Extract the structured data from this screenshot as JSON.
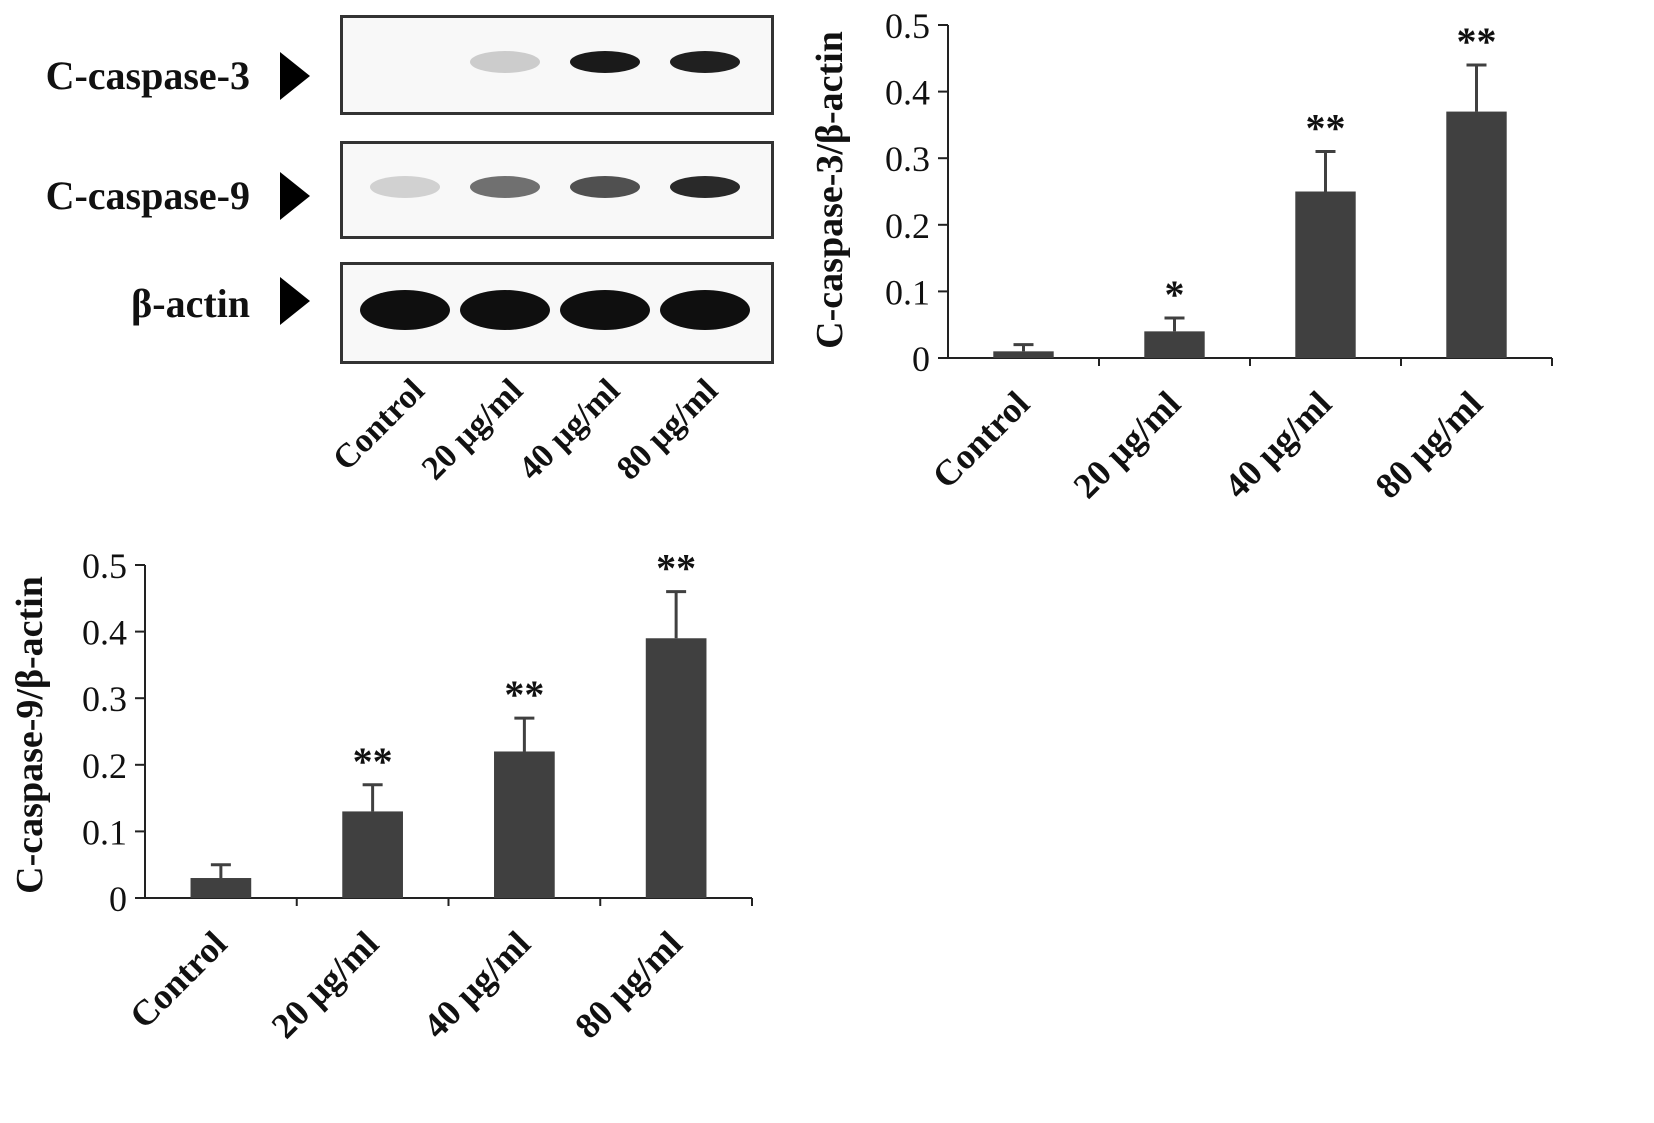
{
  "blot": {
    "rows": [
      {
        "label": "C-caspase-3",
        "intensities": [
          0.0,
          0.12,
          0.95,
          0.92
        ]
      },
      {
        "label": "C-caspase-9",
        "intensities": [
          0.1,
          0.55,
          0.7,
          0.88
        ]
      },
      {
        "label": "β-actin",
        "intensities": [
          1.0,
          1.0,
          1.0,
          1.0
        ]
      }
    ],
    "lanes": [
      "Control",
      "20 μg/ml",
      "40 μg/ml",
      "80 μg/ml"
    ]
  },
  "chart_data": [
    {
      "type": "bar",
      "categories": [
        "Control",
        "20 μg/ml",
        "40 μg/ml",
        "80 μg/ml"
      ],
      "values": [
        0.01,
        0.04,
        0.25,
        0.37
      ],
      "errors": [
        0.01,
        0.02,
        0.06,
        0.07
      ],
      "significance": [
        "",
        "*",
        "**",
        "**"
      ],
      "ylabel": "C-caspase-3/β-actin",
      "ylim": [
        0,
        0.5
      ],
      "yticks": [
        "0",
        "0.1",
        "0.2",
        "0.3",
        "0.4",
        "0.5"
      ],
      "bar_color": "#404040"
    },
    {
      "type": "bar",
      "categories": [
        "Control",
        "20 μg/ml",
        "40 μg/ml",
        "80 μg/ml"
      ],
      "values": [
        0.03,
        0.13,
        0.22,
        0.39
      ],
      "errors": [
        0.02,
        0.04,
        0.05,
        0.07
      ],
      "significance": [
        "",
        "**",
        "**",
        "**"
      ],
      "ylabel": "C-caspase-9/β-actin",
      "ylim": [
        0,
        0.5
      ],
      "yticks": [
        "0",
        "0.1",
        "0.2",
        "0.3",
        "0.4",
        "0.5"
      ],
      "bar_color": "#404040"
    }
  ]
}
